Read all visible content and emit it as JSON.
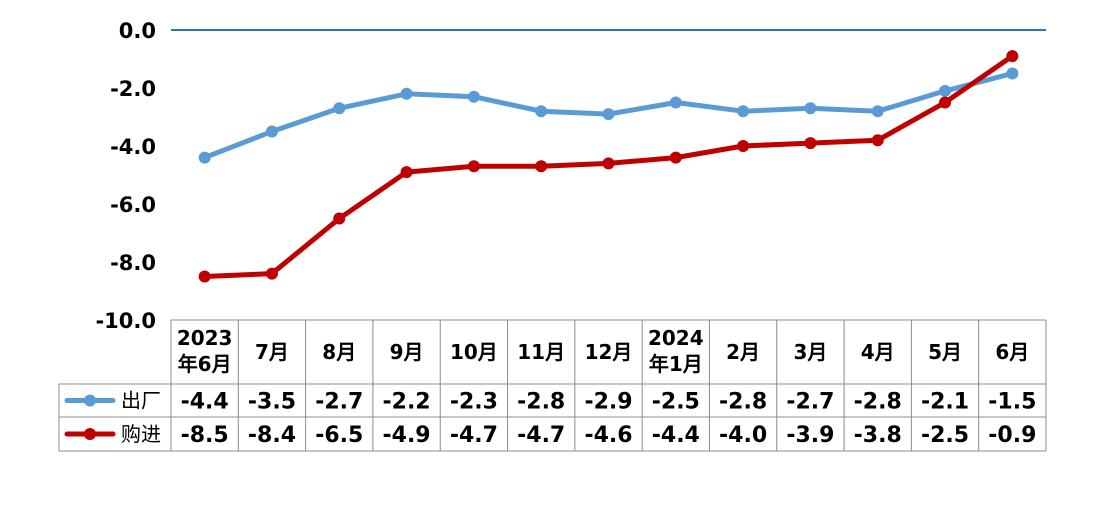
{
  "chart_data": {
    "type": "line",
    "categories": [
      [
        "2023",
        "年6月"
      ],
      [
        "7月"
      ],
      [
        "8月"
      ],
      [
        "9月"
      ],
      [
        "10月"
      ],
      [
        "11月"
      ],
      [
        "12月"
      ],
      [
        "2024",
        "年1月"
      ],
      [
        "2月"
      ],
      [
        "3月"
      ],
      [
        "4月"
      ],
      [
        "5月"
      ],
      [
        "6月"
      ]
    ],
    "series": [
      {
        "name": "出厂",
        "color": "#5b9bd5",
        "values": [
          -4.4,
          -3.5,
          -2.7,
          -2.2,
          -2.3,
          -2.8,
          -2.9,
          -2.5,
          -2.8,
          -2.7,
          -2.8,
          -2.1,
          -1.5
        ]
      },
      {
        "name": "购进",
        "color": "#c00000",
        "values": [
          -8.5,
          -8.4,
          -6.5,
          -4.9,
          -4.7,
          -4.7,
          -4.6,
          -4.4,
          -4.0,
          -3.9,
          -3.8,
          -2.5,
          -0.9
        ]
      }
    ],
    "yticks": [
      "0.0",
      "-2.0",
      "-4.0",
      "-6.0",
      "-8.0",
      "-10.0"
    ],
    "ylim": [
      -10,
      0
    ],
    "zero_line_color": "#2e75b6",
    "legend": "data-table",
    "grid": false
  }
}
